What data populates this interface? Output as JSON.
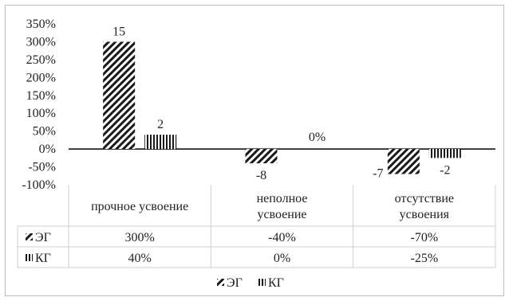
{
  "chart_data": {
    "type": "bar",
    "categories": [
      "прочное усвоение",
      "неполное\nусвоение",
      "отсутствие\nусвоения"
    ],
    "series": [
      {
        "name": "ЭГ",
        "values": [
          300,
          -40,
          -70
        ],
        "data_labels": [
          "15",
          "-8",
          "-7"
        ],
        "pattern": "diagonal"
      },
      {
        "name": "КГ",
        "values": [
          40,
          0,
          -25
        ],
        "data_labels": [
          "2",
          "0%",
          "-2"
        ],
        "pattern": "vertical"
      }
    ],
    "ylim": [
      -100,
      350
    ],
    "yticks": [
      350,
      300,
      250,
      200,
      150,
      100,
      50,
      0,
      -50,
      -100
    ],
    "ytick_labels": [
      "350%",
      "300%",
      "250%",
      "200%",
      "150%",
      "100%",
      "50%",
      "0%",
      "-50%",
      "-100%"
    ],
    "data_table": {
      "rows": [
        {
          "legend": "ЭГ",
          "cells": [
            "300%",
            "-40%",
            "-70%"
          ]
        },
        {
          "legend": "КГ",
          "cells": [
            "40%",
            "0%",
            "-25%"
          ]
        }
      ]
    },
    "legend": {
      "position": "bottom",
      "entries": [
        "ЭГ",
        "КГ"
      ]
    },
    "colors": {
      "bar_stroke": "#1a1a1a",
      "grid": "#cfcfcf",
      "frame": "#bdbdbd"
    }
  }
}
